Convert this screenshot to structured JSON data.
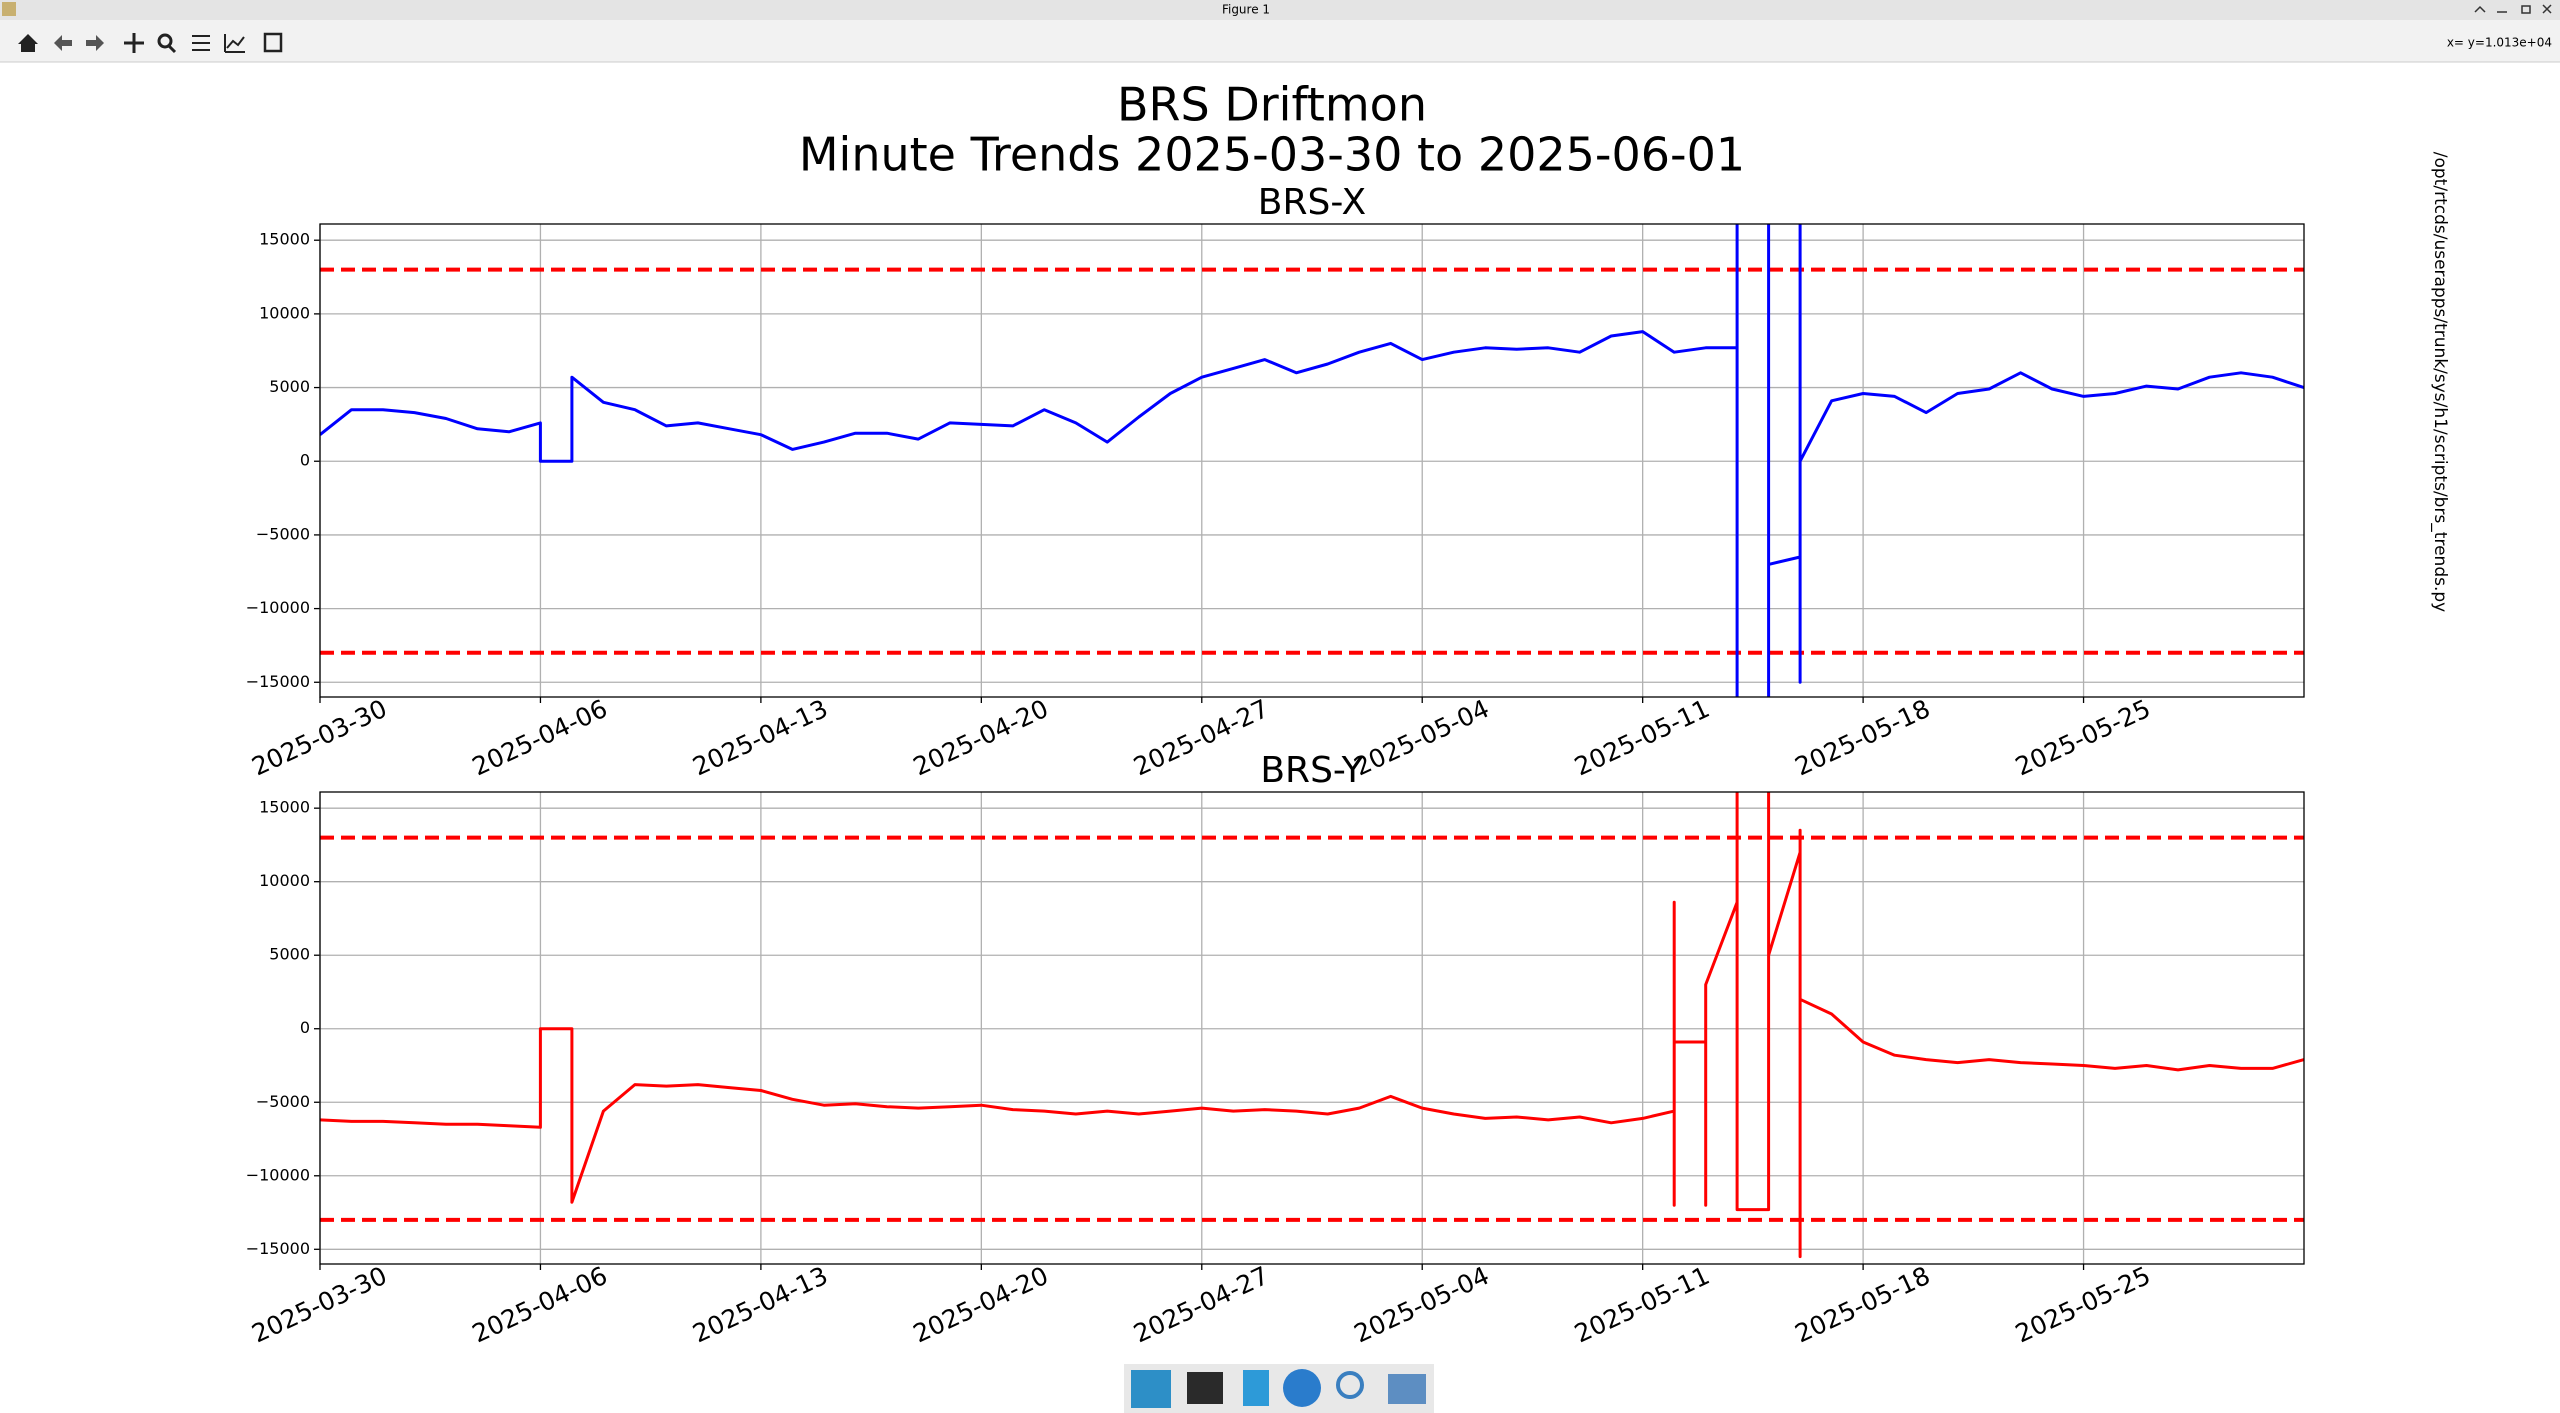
{
  "window": {
    "title": "Figure 1",
    "status": "x= y=1.013e+04"
  },
  "figure": {
    "suptitle": [
      "BRS Driftmon",
      "Minute Trends 2025-03-30  to 2025-06-01"
    ],
    "side_text": "/opt/rtcds/userapps/trunk/sys/h1/scripts/brs_trends.py"
  },
  "chart_data": [
    {
      "type": "line",
      "title": "BRS-X",
      "x": [
        "2025-03-30",
        "2025-03-31",
        "2025-04-01",
        "2025-04-02",
        "2025-04-03",
        "2025-04-04",
        "2025-04-05",
        "2025-04-06",
        "2025-04-06",
        "2025-04-07",
        "2025-04-07",
        "2025-04-08",
        "2025-04-09",
        "2025-04-10",
        "2025-04-11",
        "2025-04-12",
        "2025-04-13",
        "2025-04-14",
        "2025-04-15",
        "2025-04-16",
        "2025-04-17",
        "2025-04-18",
        "2025-04-19",
        "2025-04-20",
        "2025-04-21",
        "2025-04-22",
        "2025-04-23",
        "2025-04-24",
        "2025-04-25",
        "2025-04-26",
        "2025-04-27",
        "2025-04-28",
        "2025-04-29",
        "2025-04-30",
        "2025-05-01",
        "2025-05-02",
        "2025-05-03",
        "2025-05-04",
        "2025-05-05",
        "2025-05-06",
        "2025-05-07",
        "2025-05-08",
        "2025-05-09",
        "2025-05-10",
        "2025-05-11",
        "2025-05-12",
        "2025-05-13",
        "2025-05-14",
        "2025-05-14",
        "2025-05-14",
        "2025-05-15",
        "2025-05-15",
        "2025-05-15",
        "2025-05-16",
        "2025-05-16",
        "2025-05-16",
        "2025-05-16",
        "2025-05-17",
        "2025-05-18",
        "2025-05-19",
        "2025-05-20",
        "2025-05-21",
        "2025-05-22",
        "2025-05-23",
        "2025-05-24",
        "2025-05-25",
        "2025-05-26",
        "2025-05-27",
        "2025-05-28",
        "2025-05-29",
        "2025-05-30",
        "2025-05-31",
        "2025-06-01"
      ],
      "series": [
        {
          "color": "#0000ff",
          "values": [
            1800,
            3500,
            3500,
            3300,
            2900,
            2200,
            2000,
            2600,
            0,
            0,
            5700,
            4000,
            3500,
            2400,
            2600,
            2200,
            1800,
            800,
            1300,
            1900,
            1900,
            1500,
            2600,
            2500,
            2400,
            3500,
            2600,
            1300,
            3000,
            4600,
            5700,
            6300,
            6900,
            6000,
            6600,
            7400,
            8000,
            6900,
            7400,
            7700,
            7600,
            7700,
            7400,
            8500,
            8800,
            7400,
            7700,
            7700,
            20000,
            -20000,
            -20000,
            20000,
            -7000,
            -6500,
            20000,
            -15000,
            0,
            4100,
            4600,
            4400,
            3300,
            4600,
            4900,
            6000,
            4900,
            4400,
            4600,
            5100,
            4900,
            5700,
            6000,
            5700,
            5000
          ]
        }
      ],
      "hlines": [
        13000,
        -13000
      ],
      "hline_color": "#ff0000",
      "xlim": [
        "2025-03-30",
        "2025-06-01"
      ],
      "xticks": [
        "2025-03-30",
        "2025-04-06",
        "2025-04-13",
        "2025-04-20",
        "2025-04-27",
        "2025-05-04",
        "2025-05-11",
        "2025-05-18",
        "2025-05-25"
      ],
      "ylim": [
        -16000,
        16100
      ],
      "yticks": [
        {
          "value": -15000,
          "label": "−15000"
        },
        {
          "value": -10000,
          "label": "−10000"
        },
        {
          "value": -5000,
          "label": "−5000"
        },
        0,
        5000,
        10000,
        15000
      ],
      "grid": true
    },
    {
      "type": "line",
      "title": "BRS-Y",
      "x": [
        "2025-03-30",
        "2025-03-31",
        "2025-04-01",
        "2025-04-02",
        "2025-04-03",
        "2025-04-04",
        "2025-04-05",
        "2025-04-06",
        "2025-04-06",
        "2025-04-07",
        "2025-04-07",
        "2025-04-08",
        "2025-04-09",
        "2025-04-10",
        "2025-04-11",
        "2025-04-12",
        "2025-04-13",
        "2025-04-14",
        "2025-04-15",
        "2025-04-16",
        "2025-04-17",
        "2025-04-18",
        "2025-04-19",
        "2025-04-20",
        "2025-04-21",
        "2025-04-22",
        "2025-04-23",
        "2025-04-24",
        "2025-04-25",
        "2025-04-26",
        "2025-04-27",
        "2025-04-28",
        "2025-04-29",
        "2025-04-30",
        "2025-05-01",
        "2025-05-02",
        "2025-05-03",
        "2025-05-04",
        "2025-05-05",
        "2025-05-06",
        "2025-05-07",
        "2025-05-08",
        "2025-05-09",
        "2025-05-10",
        "2025-05-11",
        "2025-05-12",
        "2025-05-12",
        "2025-05-12",
        "2025-05-12",
        "2025-05-13",
        "2025-05-13",
        "2025-05-13",
        "2025-05-14",
        "2025-05-14",
        "2025-05-14",
        "2025-05-15",
        "2025-05-15",
        "2025-05-15",
        "2025-05-16",
        "2025-05-16",
        "2025-05-16",
        "2025-05-16",
        "2025-05-17",
        "2025-05-18",
        "2025-05-19",
        "2025-05-20",
        "2025-05-21",
        "2025-05-22",
        "2025-05-23",
        "2025-05-24",
        "2025-05-25",
        "2025-05-26",
        "2025-05-27",
        "2025-05-28",
        "2025-05-29",
        "2025-05-30",
        "2025-05-31",
        "2025-06-01"
      ],
      "series": [
        {
          "color": "#ff0000",
          "values": [
            -6200,
            -6300,
            -6300,
            -6400,
            -6500,
            -6500,
            -6600,
            -6700,
            0,
            0,
            -11800,
            -5600,
            -3800,
            -3900,
            -3800,
            -4000,
            -4200,
            -4800,
            -5200,
            -5100,
            -5300,
            -5400,
            -5300,
            -5200,
            -5500,
            -5600,
            -5800,
            -5600,
            -5800,
            -5600,
            -5400,
            -5600,
            -5500,
            -5600,
            -5800,
            -5400,
            -4600,
            -5400,
            -5800,
            -6100,
            -6000,
            -6200,
            -6000,
            -6400,
            -6100,
            -5600,
            8600,
            -12000,
            -900,
            -900,
            -12000,
            3000,
            8600,
            20000,
            -12300,
            -12300,
            20000,
            5000,
            12000,
            13500,
            -15500,
            2000,
            1000,
            -900,
            -1800,
            -2100,
            -2300,
            -2100,
            -2300,
            -2400,
            -2500,
            -2700,
            -2500,
            -2800,
            -2500,
            -2700,
            -2700,
            -2100
          ]
        }
      ],
      "hlines": [
        13000,
        -13000
      ],
      "hline_color": "#ff0000",
      "xlim": [
        "2025-03-30",
        "2025-06-01"
      ],
      "xticks": [
        "2025-03-30",
        "2025-04-06",
        "2025-04-13",
        "2025-04-20",
        "2025-04-27",
        "2025-05-04",
        "2025-05-11",
        "2025-05-18",
        "2025-05-25"
      ],
      "ylim": [
        -16000,
        16100
      ],
      "yticks": [
        {
          "value": -15000,
          "label": "−15000"
        },
        {
          "value": -10000,
          "label": "−10000"
        },
        {
          "value": -5000,
          "label": "−5000"
        },
        0,
        5000,
        10000,
        15000
      ],
      "grid": true
    }
  ]
}
